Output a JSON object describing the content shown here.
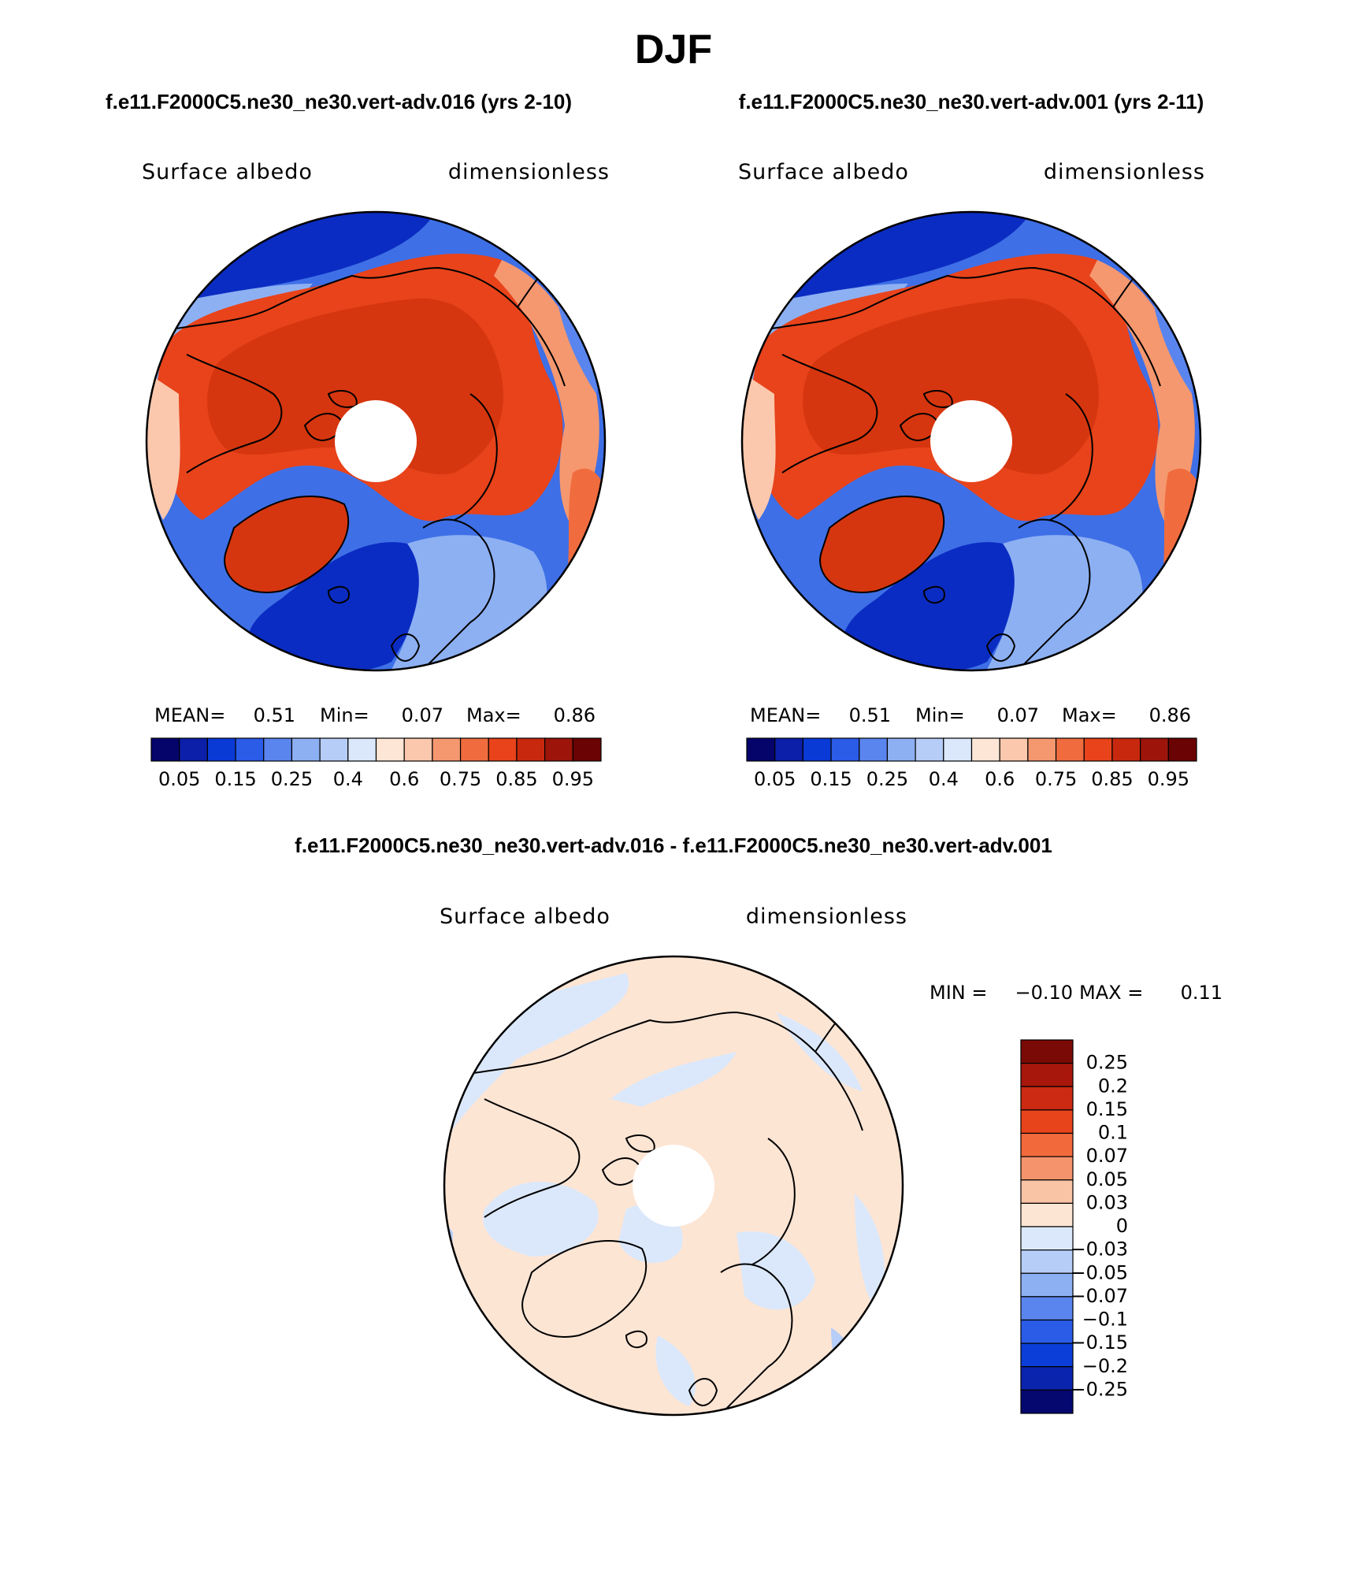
{
  "page_title": "DJF",
  "panel_titles": {
    "left": "f.e11.F2000C5.ne30_ne30.vert-adv.016 (yrs 2-10)",
    "right": "f.e11.F2000C5.ne30_ne30.vert-adv.001 (yrs 2-11)",
    "bottom": "f.e11.F2000C5.ne30_ne30.vert-adv.016 - f.e11.F2000C5.ne30_ne30.vert-adv.001"
  },
  "chart_data": [
    {
      "type": "heatmap",
      "projection": "north-polar-stereographic",
      "variable": "Surface albedo",
      "units": "dimensionless",
      "stats": {
        "mean_label": "MEAN=",
        "mean": "0.51",
        "min_label": "Min=",
        "min": "0.07",
        "max_label": "Max=",
        "max": "0.86"
      },
      "colorbar": {
        "orientation": "horizontal",
        "levels": [
          "0.05",
          "0.1",
          "0.15",
          "0.2",
          "0.25",
          "0.3",
          "0.4",
          "0.5",
          "0.6",
          "0.65",
          "0.75",
          "0.8",
          "0.85",
          "0.9",
          "0.95"
        ],
        "tick_labels": [
          "0.05",
          "0.15",
          "0.25",
          "0.4",
          "0.6",
          "0.75",
          "0.85",
          "0.95"
        ],
        "colors": [
          "#05046a",
          "#0b1fa8",
          "#0a3ad6",
          "#2a5ce8",
          "#5a85ee",
          "#8db0f3",
          "#b6cdf7",
          "#dbe8fb",
          "#fde6d6",
          "#fbc8ad",
          "#f5986f",
          "#f06c3e",
          "#e8431b",
          "#c8290e",
          "#9d150a",
          "#6a0304"
        ]
      },
      "grid": false
    },
    {
      "type": "heatmap",
      "projection": "north-polar-stereographic",
      "variable": "Surface albedo",
      "units": "dimensionless",
      "stats": {
        "mean_label": "MEAN=",
        "mean": "0.51",
        "min_label": "Min=",
        "min": "0.07",
        "max_label": "Max=",
        "max": "0.86"
      },
      "colorbar": {
        "orientation": "horizontal",
        "levels": [
          "0.05",
          "0.1",
          "0.15",
          "0.2",
          "0.25",
          "0.3",
          "0.4",
          "0.5",
          "0.6",
          "0.65",
          "0.75",
          "0.8",
          "0.85",
          "0.9",
          "0.95"
        ],
        "tick_labels": [
          "0.05",
          "0.15",
          "0.25",
          "0.4",
          "0.6",
          "0.75",
          "0.85",
          "0.95"
        ],
        "colors": [
          "#05046a",
          "#0b1fa8",
          "#0a3ad6",
          "#2a5ce8",
          "#5a85ee",
          "#8db0f3",
          "#b6cdf7",
          "#dbe8fb",
          "#fde6d6",
          "#fbc8ad",
          "#f5986f",
          "#f06c3e",
          "#e8431b",
          "#c8290e",
          "#9d150a",
          "#6a0304"
        ]
      },
      "grid": false
    },
    {
      "type": "heatmap",
      "projection": "north-polar-stereographic",
      "variable": "Surface albedo",
      "units": "dimensionless",
      "stats": {
        "min_label": "MIN =",
        "min": "−0.10",
        "max_label": "MAX =",
        "max": "0.11"
      },
      "colorbar": {
        "orientation": "vertical",
        "tick_labels": [
          "0.25",
          "0.2",
          "0.15",
          "0.1",
          "0.07",
          "0.05",
          "0.03",
          "0",
          "−0.03",
          "−0.05",
          "−0.07",
          "−0.1",
          "−0.15",
          "−0.2",
          "−0.25"
        ],
        "colors": [
          "#7a0a05",
          "#a8170c",
          "#cc2a12",
          "#e8441c",
          "#f26a3b",
          "#f5946c",
          "#f9c3a6",
          "#fde5d4",
          "#dbe8fb",
          "#b6cdf7",
          "#8db0f3",
          "#5a85ee",
          "#2a5ce8",
          "#0b3ed8",
          "#0a24ad",
          "#05086e"
        ]
      },
      "grid": false
    }
  ]
}
